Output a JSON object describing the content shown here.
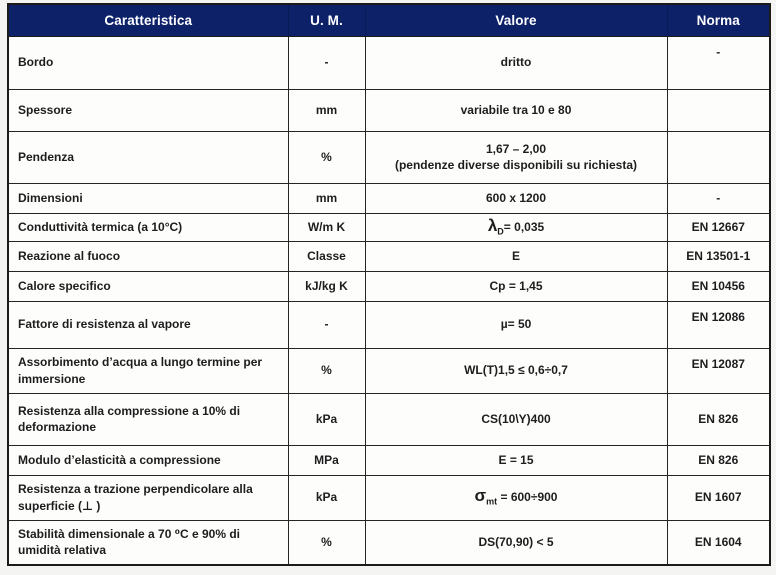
{
  "colors": {
    "header_bg": "#0d2169",
    "header_text": "#ffffff",
    "cell_border": "#252525",
    "cell_text": "#1d1d1d",
    "page_bg": "#f4f4f2"
  },
  "table": {
    "headers": [
      "Caratteristica",
      "U. M.",
      "Valore",
      "Norma"
    ],
    "rows": [
      {
        "caratteristica": "Bordo",
        "um": "-",
        "valore": "dritto",
        "norma": "-"
      },
      {
        "caratteristica": "Spessore",
        "um": "mm",
        "valore": "variabile tra 10 e 80",
        "norma": ""
      },
      {
        "caratteristica": "Pendenza",
        "um": "%",
        "valore": {
          "lines": [
            "1,67 – 2,00",
            "(pendenze diverse disponibili su richiesta)"
          ]
        },
        "norma": ""
      },
      {
        "caratteristica": "Dimensioni",
        "um": "mm",
        "valore": "600 x 1200",
        "norma": "-"
      },
      {
        "caratteristica": "Conduttività termica (a 10°C)",
        "um": "W/m K",
        "valore": {
          "sym": "λ",
          "sub": "D",
          "rest": "= 0,035"
        },
        "norma": "EN 12667"
      },
      {
        "caratteristica": "Reazione al fuoco",
        "um": "Classe",
        "valore": "E",
        "norma": "EN 13501-1"
      },
      {
        "caratteristica": "Calore specifico",
        "um": "kJ/kg K",
        "valore": "Cp = 1,45",
        "norma": "EN 10456"
      },
      {
        "caratteristica": "Fattore di resistenza al vapore",
        "um": "-",
        "valore": "µ= 50",
        "norma": "EN 12086"
      },
      {
        "caratteristica": "Assorbimento d’acqua a lungo termine per immersione",
        "um": "%",
        "valore": "WL(T)1,5 ≤ 0,6÷0,7",
        "norma": "EN 12087"
      },
      {
        "caratteristica": "Resistenza alla compressione a 10% di deformazione",
        "um": "kPa",
        "valore": "CS(10\\Y)400",
        "norma": "EN 826"
      },
      {
        "caratteristica": "Modulo d’elasticità a compressione",
        "um": "MPa",
        "valore": "E = 15",
        "norma": "EN 826"
      },
      {
        "caratteristica": "Resistenza a trazione  perpendicolare alla superficie (⊥ )",
        "um": "kPa",
        "valore": {
          "sym": "σ",
          "sub": "mt",
          "rest": " = 600÷900"
        },
        "norma": "EN 1607"
      },
      {
        "caratteristica": "Stabilità dimensionale a 70 ⁰C e 90% di umidità relativa",
        "um": "%",
        "valore": "DS(70,90) < 5",
        "norma": "EN 1604"
      }
    ]
  }
}
